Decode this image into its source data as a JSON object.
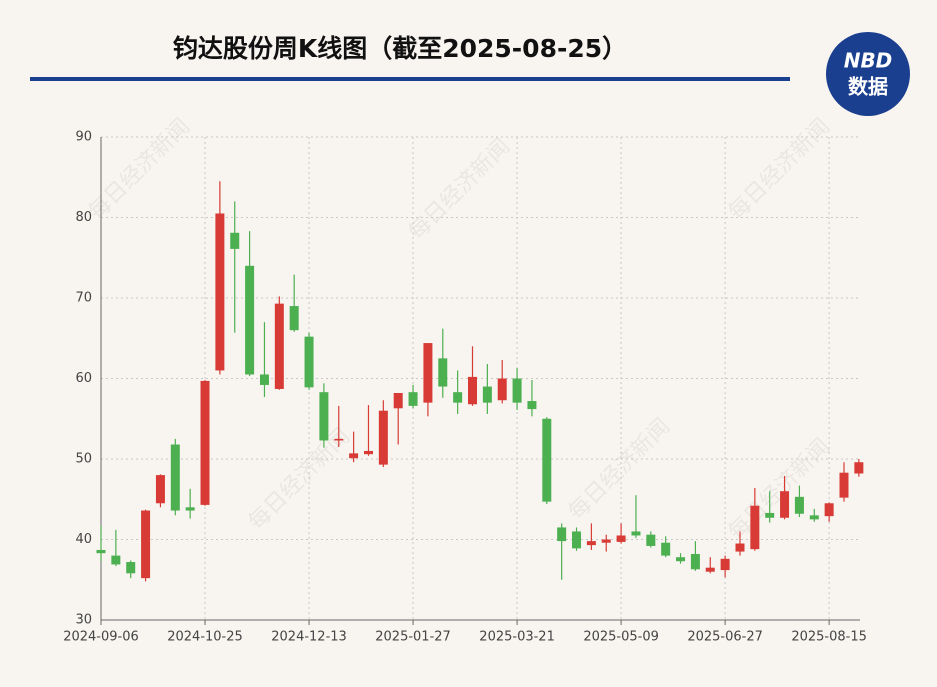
{
  "header": {
    "title": "钧达股份周K线图（截至2025-08-25）",
    "logo_top": "NBD",
    "logo_bottom": "数据"
  },
  "watermark": "每日经济新闻",
  "chart_data": {
    "type": "candlestick",
    "categories": [
      "2024-09-06",
      null,
      null,
      null,
      null,
      null,
      null,
      "2024-10-25",
      null,
      null,
      null,
      null,
      null,
      null,
      "2024-12-13",
      null,
      null,
      null,
      null,
      null,
      null,
      "2025-01-27",
      null,
      null,
      null,
      null,
      null,
      null,
      "2025-03-21",
      null,
      null,
      null,
      null,
      null,
      null,
      "2025-05-09",
      null,
      null,
      null,
      null,
      null,
      null,
      "2025-06-27",
      null,
      null,
      null,
      null,
      null,
      null,
      "2025-08-15",
      null,
      null
    ],
    "open": [
      38.7,
      38,
      37.2,
      35.2,
      44.5,
      51.8,
      44,
      44.3,
      61,
      78.1,
      74,
      60.5,
      58.7,
      69,
      65.2,
      58.3,
      52.3,
      50.1,
      50.6,
      49.3,
      56.3,
      58.3,
      57,
      62.5,
      58.3,
      56.8,
      59,
      57.3,
      60,
      57.2,
      55,
      41.5,
      41,
      39.3,
      39.6,
      39.7,
      41,
      40.6,
      39.6,
      37.8,
      38.2,
      36,
      36.2,
      38.5,
      38.8,
      43.3,
      42.7,
      45.3,
      43,
      42.9,
      45.2,
      48.2
    ],
    "high": [
      41.7,
      41.2,
      37.4,
      43.7,
      48.1,
      52.5,
      46.3,
      59.8,
      84.5,
      82,
      78.3,
      67,
      70.2,
      72.9,
      65.7,
      59.4,
      56.6,
      53.4,
      56.7,
      57.3,
      58.2,
      59.2,
      64.4,
      66.2,
      61,
      64,
      61.8,
      62.3,
      61.3,
      59.8,
      55.2,
      42,
      41.5,
      42,
      40.6,
      42,
      45.5,
      41,
      40.4,
      38.3,
      39.8,
      37.8,
      38,
      41,
      46.4,
      46,
      47.9,
      46.7,
      43.8,
      44.6,
      49.6,
      50
    ],
    "low": [
      37.3,
      36.7,
      35.2,
      34.8,
      44,
      43,
      42.6,
      44.2,
      60.5,
      65.7,
      60.3,
      57.7,
      58.6,
      65.8,
      58.6,
      51.4,
      51.5,
      49.6,
      50.4,
      49,
      51.8,
      56.3,
      55.3,
      57.6,
      55.6,
      56.6,
      55.6,
      56.9,
      56.1,
      55.3,
      44.4,
      35,
      38.6,
      38.7,
      38.5,
      39.5,
      40.2,
      39,
      37.8,
      37,
      36.1,
      35.8,
      35.3,
      38,
      38.6,
      42.1,
      42.5,
      42.8,
      42.2,
      42.2,
      44.7,
      47.8
    ],
    "close": [
      38.3,
      36.9,
      35.8,
      43.6,
      48,
      43.6,
      43.6,
      59.7,
      80.5,
      76.1,
      60.5,
      59.2,
      69.3,
      66,
      58.9,
      52.3,
      52.5,
      50.7,
      51,
      56,
      58.2,
      56.6,
      64.4,
      59,
      57,
      60.2,
      57,
      60,
      57,
      56.2,
      44.7,
      39.8,
      38.9,
      39.8,
      40,
      40.5,
      40.5,
      39.2,
      38,
      37.3,
      36.3,
      36.5,
      37.6,
      39.5,
      44.2,
      42.7,
      46,
      43.2,
      42.5,
      44.5,
      48.3,
      49.6
    ],
    "up_color": "#d83b35",
    "down_color": "#4caf50",
    "ylim": [
      30,
      90
    ],
    "yticks": [
      30,
      40,
      50,
      60,
      70,
      80,
      90
    ],
    "grid": true
  }
}
